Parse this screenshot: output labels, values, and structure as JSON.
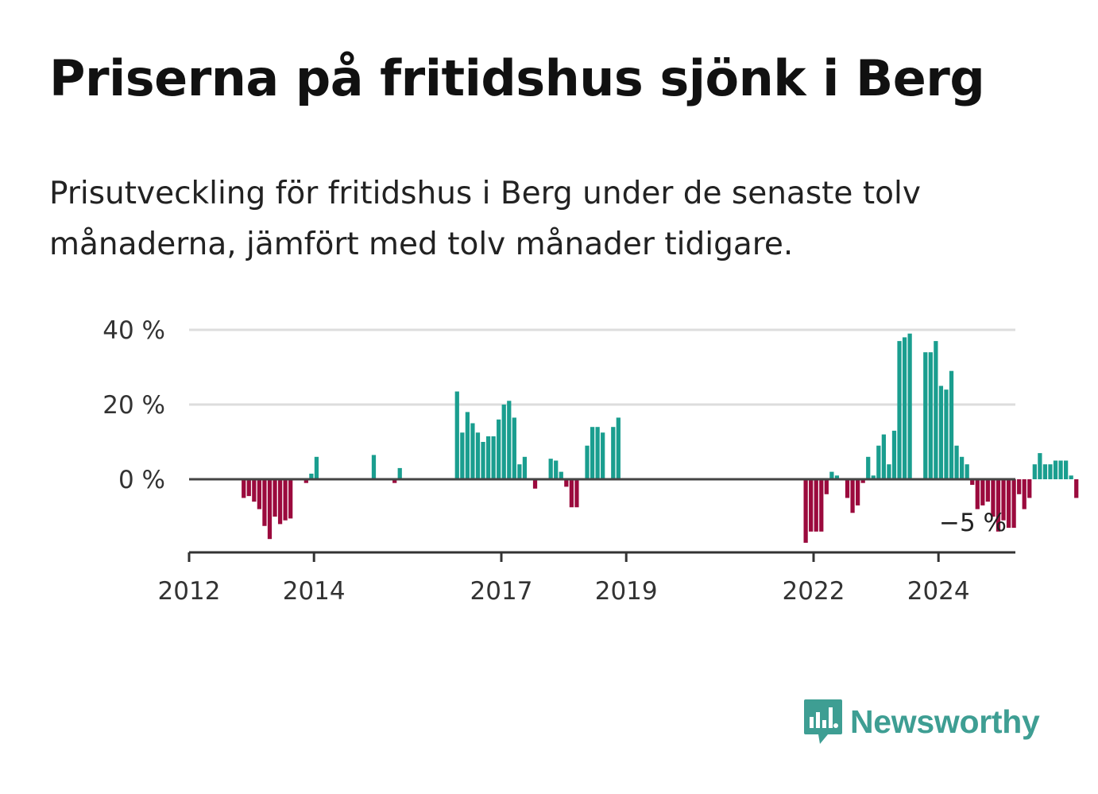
{
  "header": {
    "title": "Priserna på fritidshus sjönk i Berg",
    "subtitle": "Prisutveckling för fritidshus i Berg under de senaste tolv månaderna, jämfört med tolv månader tidigare."
  },
  "brand": {
    "name": "Newsworthy",
    "color": "#3e9e93",
    "icon": "newsworthy-logo-icon"
  },
  "chart_data": {
    "type": "bar",
    "x_start": "2012-01",
    "x_end": "2025-04",
    "x_ticks": [
      "2012",
      "2014",
      "2017",
      "2019",
      "2022",
      "2024"
    ],
    "y_ticks": [
      "40 %",
      "20 %",
      "0 %"
    ],
    "y_tick_values": [
      40,
      20,
      0
    ],
    "ylim": [
      -20,
      40
    ],
    "grid": true,
    "colors": {
      "positive": "#1a9e8f",
      "negative": "#9b0a3d"
    },
    "end_label": "−5 %",
    "series": [
      {
        "values": [
          0,
          0,
          0,
          0,
          0,
          0,
          0,
          0,
          0,
          0,
          -5,
          -4.5,
          -6,
          -8,
          -12.5,
          -16,
          -10,
          -12,
          -11,
          -10.5,
          0,
          0,
          -1,
          1.5,
          6,
          0,
          0,
          0,
          0,
          0,
          0,
          0,
          0,
          0,
          0,
          6.5,
          0,
          0,
          0,
          -1,
          3,
          0,
          0,
          0,
          0,
          0,
          0,
          0,
          0,
          0,
          0,
          23.5,
          12.5,
          18,
          15,
          12.5,
          10,
          11.5,
          11.5,
          16,
          20,
          21,
          16.5,
          4,
          6,
          0,
          -2.5,
          0,
          0,
          5.5,
          5,
          2,
          -2,
          -7.5,
          -7.5,
          0,
          9,
          14,
          14,
          12.5,
          0,
          14,
          16.5,
          0,
          0,
          0,
          0,
          0,
          0,
          0,
          0,
          0,
          0,
          0,
          0,
          0,
          0,
          0,
          0,
          0,
          0,
          0,
          0,
          0,
          0,
          0,
          0,
          0,
          0,
          0,
          0,
          0,
          0,
          0,
          0,
          0,
          0,
          0,
          -17,
          -14,
          -14,
          -14,
          -4,
          2,
          1,
          0,
          -5,
          -9,
          -7,
          -1,
          6,
          1,
          9,
          12,
          4,
          13,
          37,
          38,
          39,
          0,
          0,
          34,
          34,
          37,
          25,
          24,
          29,
          9,
          6,
          4,
          -1.5,
          -8,
          -7,
          -6,
          -10,
          -14,
          -11,
          -13,
          -13,
          -4,
          -8,
          -5,
          4,
          7,
          4,
          4,
          5,
          5,
          5,
          1,
          -5
        ]
      }
    ]
  }
}
